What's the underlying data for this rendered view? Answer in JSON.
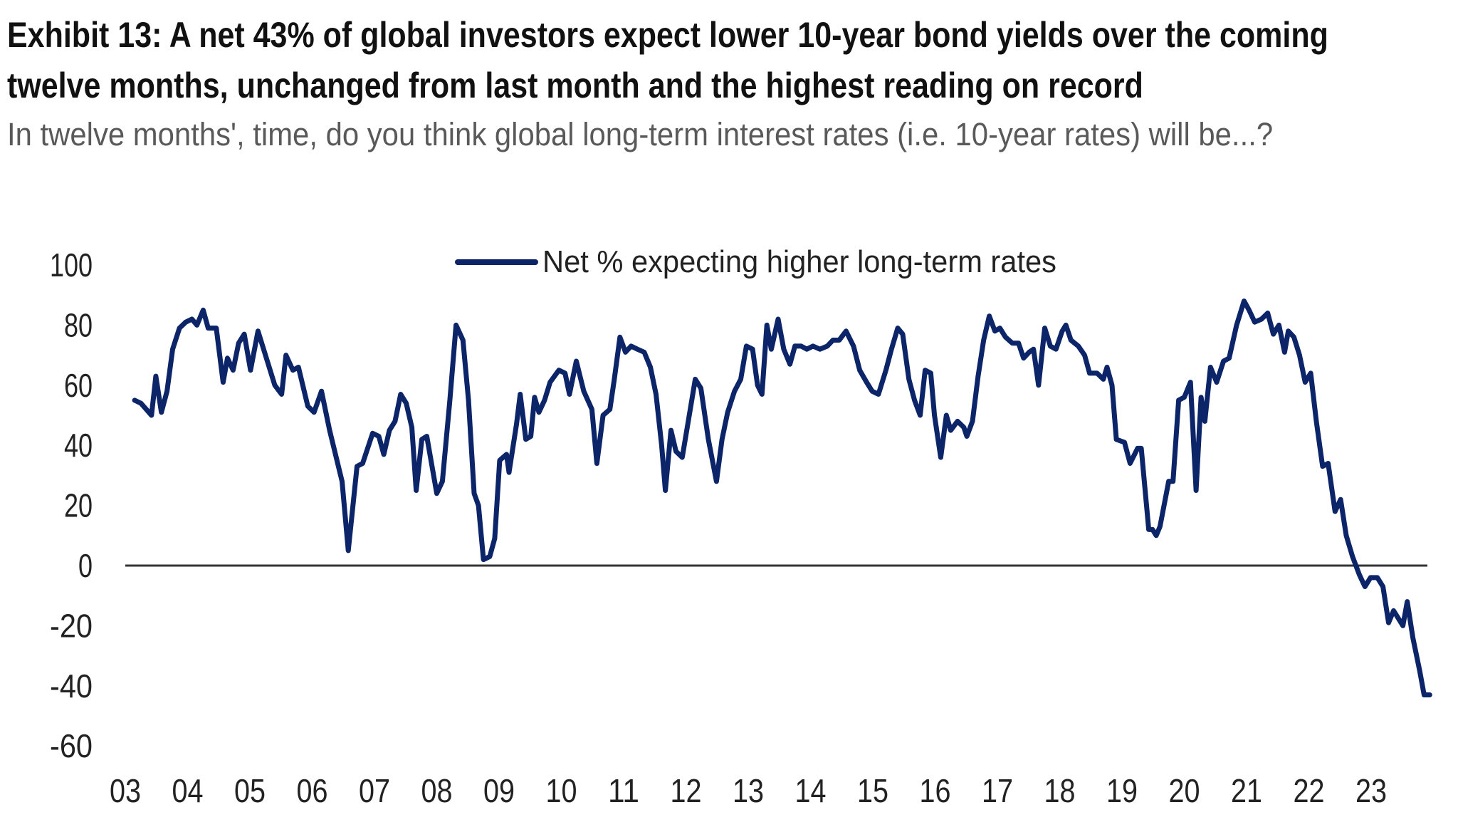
{
  "header": {
    "title_line1": "Exhibit 13: A net 43% of global investors expect lower 10-year bond yields over the coming",
    "title_line2": "twelve months, unchanged from last month and the highest reading on record",
    "subtitle": "In twelve months', time, do you think global long-term interest rates (i.e. 10-year rates) will be...?"
  },
  "chart_data": {
    "type": "line",
    "title": "Exhibit 13: A net 43% of global investors expect lower 10-year bond yields over the coming twelve months, unchanged from last month and the highest reading on record",
    "subtitle": "In twelve months', time, do you think global long-term interest rates (i.e. 10-year rates) will be...?",
    "xlabel": "",
    "ylabel": "",
    "ylim": [
      -60,
      100
    ],
    "xlim": [
      2003,
      2024
    ],
    "yticks": [
      "100",
      "80",
      "60",
      "40",
      "20",
      "0",
      "-20",
      "-40",
      "-60"
    ],
    "ytick_values": [
      100,
      80,
      60,
      40,
      20,
      0,
      -20,
      -40,
      -60
    ],
    "xticks": [
      "03",
      "04",
      "05",
      "06",
      "07",
      "08",
      "09",
      "10",
      "11",
      "12",
      "13",
      "14",
      "15",
      "16",
      "17",
      "18",
      "19",
      "20",
      "21",
      "22",
      "23"
    ],
    "xtick_values": [
      2003,
      2004,
      2005,
      2006,
      2007,
      2008,
      2009,
      2010,
      2011,
      2012,
      2013,
      2014,
      2015,
      2016,
      2017,
      2018,
      2019,
      2020,
      2021,
      2022,
      2023
    ],
    "grid": false,
    "zero_line": true,
    "legend_position": "top-center",
    "line_color": "#0c2468",
    "series": [
      {
        "name": "Net % expecting higher long-term rates",
        "points": [
          [
            2003.15,
            55
          ],
          [
            2003.25,
            54
          ],
          [
            2003.42,
            50
          ],
          [
            2003.49,
            63
          ],
          [
            2003.58,
            51
          ],
          [
            2003.67,
            58
          ],
          [
            2003.76,
            72
          ],
          [
            2003.87,
            79
          ],
          [
            2003.97,
            81
          ],
          [
            2004.07,
            82
          ],
          [
            2004.15,
            80
          ],
          [
            2004.25,
            85
          ],
          [
            2004.33,
            79
          ],
          [
            2004.46,
            79
          ],
          [
            2004.57,
            61
          ],
          [
            2004.64,
            69
          ],
          [
            2004.73,
            65
          ],
          [
            2004.82,
            74
          ],
          [
            2004.91,
            77
          ],
          [
            2005.01,
            65
          ],
          [
            2005.13,
            78
          ],
          [
            2005.28,
            68
          ],
          [
            2005.4,
            60
          ],
          [
            2005.51,
            57
          ],
          [
            2005.58,
            70
          ],
          [
            2005.69,
            65
          ],
          [
            2005.78,
            66
          ],
          [
            2005.93,
            53
          ],
          [
            2006.03,
            51
          ],
          [
            2006.15,
            58
          ],
          [
            2006.28,
            45
          ],
          [
            2006.48,
            28
          ],
          [
            2006.58,
            5
          ],
          [
            2006.72,
            33
          ],
          [
            2006.81,
            34
          ],
          [
            2006.97,
            44
          ],
          [
            2007.07,
            43
          ],
          [
            2007.15,
            37
          ],
          [
            2007.24,
            45
          ],
          [
            2007.33,
            48
          ],
          [
            2007.42,
            57
          ],
          [
            2007.51,
            54
          ],
          [
            2007.6,
            46
          ],
          [
            2007.67,
            25
          ],
          [
            2007.76,
            42
          ],
          [
            2007.84,
            43
          ],
          [
            2008.0,
            24
          ],
          [
            2008.09,
            28
          ],
          [
            2008.21,
            55
          ],
          [
            2008.31,
            80
          ],
          [
            2008.42,
            75
          ],
          [
            2008.51,
            55
          ],
          [
            2008.6,
            24
          ],
          [
            2008.67,
            20
          ],
          [
            2008.75,
            2
          ],
          [
            2008.85,
            3
          ],
          [
            2008.93,
            9
          ],
          [
            2009.01,
            35
          ],
          [
            2009.12,
            37
          ],
          [
            2009.16,
            31
          ],
          [
            2009.28,
            47
          ],
          [
            2009.34,
            57
          ],
          [
            2009.43,
            42
          ],
          [
            2009.51,
            43
          ],
          [
            2009.57,
            56
          ],
          [
            2009.64,
            51
          ],
          [
            2009.73,
            55
          ],
          [
            2009.82,
            61
          ],
          [
            2009.96,
            65
          ],
          [
            2010.06,
            64
          ],
          [
            2010.13,
            57
          ],
          [
            2010.24,
            68
          ],
          [
            2010.36,
            58
          ],
          [
            2010.49,
            52
          ],
          [
            2010.57,
            34
          ],
          [
            2010.67,
            50
          ],
          [
            2010.78,
            52
          ],
          [
            2010.85,
            62
          ],
          [
            2010.94,
            76
          ],
          [
            2011.03,
            71
          ],
          [
            2011.12,
            73
          ],
          [
            2011.22,
            72
          ],
          [
            2011.33,
            71
          ],
          [
            2011.43,
            66
          ],
          [
            2011.52,
            57
          ],
          [
            2011.61,
            40
          ],
          [
            2011.67,
            25
          ],
          [
            2011.76,
            45
          ],
          [
            2011.84,
            38
          ],
          [
            2011.94,
            36
          ],
          [
            2012.07,
            52
          ],
          [
            2012.15,
            62
          ],
          [
            2012.24,
            59
          ],
          [
            2012.36,
            42
          ],
          [
            2012.49,
            28
          ],
          [
            2012.58,
            42
          ],
          [
            2012.67,
            51
          ],
          [
            2012.78,
            58
          ],
          [
            2012.88,
            62
          ],
          [
            2012.97,
            73
          ],
          [
            2013.07,
            72
          ],
          [
            2013.15,
            60
          ],
          [
            2013.22,
            57
          ],
          [
            2013.3,
            80
          ],
          [
            2013.37,
            72
          ],
          [
            2013.48,
            82
          ],
          [
            2013.57,
            72
          ],
          [
            2013.67,
            67
          ],
          [
            2013.75,
            73
          ],
          [
            2013.85,
            73
          ],
          [
            2013.94,
            72
          ],
          [
            2014.04,
            73
          ],
          [
            2014.15,
            72
          ],
          [
            2014.27,
            73
          ],
          [
            2014.36,
            75
          ],
          [
            2014.46,
            75
          ],
          [
            2014.57,
            78
          ],
          [
            2014.69,
            73
          ],
          [
            2014.79,
            65
          ],
          [
            2014.9,
            61
          ],
          [
            2014.99,
            58
          ],
          [
            2015.09,
            57
          ],
          [
            2015.21,
            65
          ],
          [
            2015.3,
            72
          ],
          [
            2015.4,
            79
          ],
          [
            2015.48,
            77
          ],
          [
            2015.58,
            62
          ],
          [
            2015.67,
            55
          ],
          [
            2015.76,
            50
          ],
          [
            2015.84,
            65
          ],
          [
            2015.93,
            64
          ],
          [
            2015.99,
            50
          ],
          [
            2016.09,
            36
          ],
          [
            2016.18,
            50
          ],
          [
            2016.25,
            45
          ],
          [
            2016.36,
            48
          ],
          [
            2016.46,
            46
          ],
          [
            2016.51,
            43
          ],
          [
            2016.6,
            48
          ],
          [
            2016.69,
            63
          ],
          [
            2016.78,
            75
          ],
          [
            2016.87,
            83
          ],
          [
            2016.96,
            78
          ],
          [
            2017.04,
            79
          ],
          [
            2017.13,
            76
          ],
          [
            2017.24,
            74
          ],
          [
            2017.34,
            74
          ],
          [
            2017.42,
            69
          ],
          [
            2017.51,
            71
          ],
          [
            2017.58,
            72
          ],
          [
            2017.66,
            60
          ],
          [
            2017.76,
            79
          ],
          [
            2017.85,
            73
          ],
          [
            2017.94,
            72
          ],
          [
            2018.04,
            78
          ],
          [
            2018.1,
            80
          ],
          [
            2018.18,
            75
          ],
          [
            2018.3,
            73
          ],
          [
            2018.4,
            70
          ],
          [
            2018.48,
            64
          ],
          [
            2018.6,
            64
          ],
          [
            2018.7,
            62
          ],
          [
            2018.76,
            66
          ],
          [
            2018.84,
            60
          ],
          [
            2018.91,
            42
          ],
          [
            2019.04,
            41
          ],
          [
            2019.13,
            34
          ],
          [
            2019.25,
            39
          ],
          [
            2019.31,
            39
          ],
          [
            2019.43,
            12
          ],
          [
            2019.49,
            12
          ],
          [
            2019.55,
            10
          ],
          [
            2019.61,
            13
          ],
          [
            2019.75,
            28
          ],
          [
            2019.82,
            28
          ],
          [
            2019.91,
            55
          ],
          [
            2020.0,
            56
          ],
          [
            2020.1,
            61
          ],
          [
            2020.19,
            25
          ],
          [
            2020.27,
            56
          ],
          [
            2020.33,
            48
          ],
          [
            2020.42,
            66
          ],
          [
            2020.52,
            61
          ],
          [
            2020.63,
            68
          ],
          [
            2020.72,
            69
          ],
          [
            2020.84,
            80
          ],
          [
            2020.96,
            88
          ],
          [
            2021.04,
            85
          ],
          [
            2021.13,
            81
          ],
          [
            2021.24,
            82
          ],
          [
            2021.34,
            84
          ],
          [
            2021.43,
            77
          ],
          [
            2021.52,
            80
          ],
          [
            2021.61,
            71
          ],
          [
            2021.67,
            78
          ],
          [
            2021.76,
            76
          ],
          [
            2021.85,
            70
          ],
          [
            2021.94,
            61
          ],
          [
            2022.03,
            64
          ],
          [
            2022.12,
            48
          ],
          [
            2022.22,
            33
          ],
          [
            2022.31,
            34
          ],
          [
            2022.42,
            18
          ],
          [
            2022.51,
            22
          ],
          [
            2022.6,
            10
          ],
          [
            2022.7,
            3
          ],
          [
            2022.81,
            -3
          ],
          [
            2022.9,
            -7
          ],
          [
            2022.99,
            -4
          ],
          [
            2023.1,
            -4
          ],
          [
            2023.19,
            -7
          ],
          [
            2023.28,
            -19
          ],
          [
            2023.36,
            -15
          ],
          [
            2023.45,
            -18
          ],
          [
            2023.51,
            -20
          ],
          [
            2023.58,
            -12
          ],
          [
            2023.67,
            -24
          ],
          [
            2023.78,
            -35
          ],
          [
            2023.85,
            -43
          ],
          [
            2023.94,
            -43
          ]
        ]
      }
    ]
  }
}
